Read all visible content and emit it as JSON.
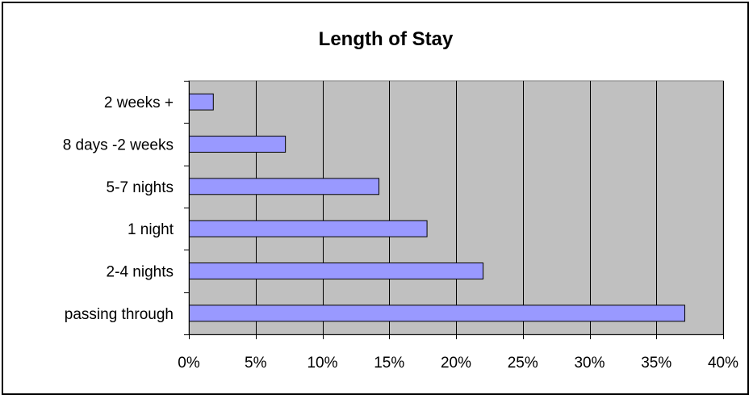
{
  "chart_data": {
    "type": "bar",
    "orientation": "horizontal",
    "title": "Length of Stay",
    "xlabel": "",
    "ylabel": "",
    "categories": [
      "2 weeks +",
      "8 days -2 weeks",
      "5-7 nights",
      "1 night",
      "2-4 nights",
      "passing through"
    ],
    "values": [
      1.8,
      7.2,
      14.2,
      17.8,
      22.0,
      37.1
    ],
    "value_unit": "percent",
    "xlim": [
      0,
      40
    ],
    "xticks": [
      0,
      5,
      10,
      15,
      20,
      25,
      30,
      35,
      40
    ],
    "xtick_labels": [
      "0%",
      "5%",
      "10%",
      "15%",
      "20%",
      "25%",
      "30%",
      "35%",
      "40%"
    ],
    "grid": "vertical",
    "legend": "none",
    "colors": {
      "plot_background": "#c0c0c0",
      "bar_fill": "#9999ff",
      "bar_stroke": "#000000",
      "grid": "#000000"
    }
  }
}
